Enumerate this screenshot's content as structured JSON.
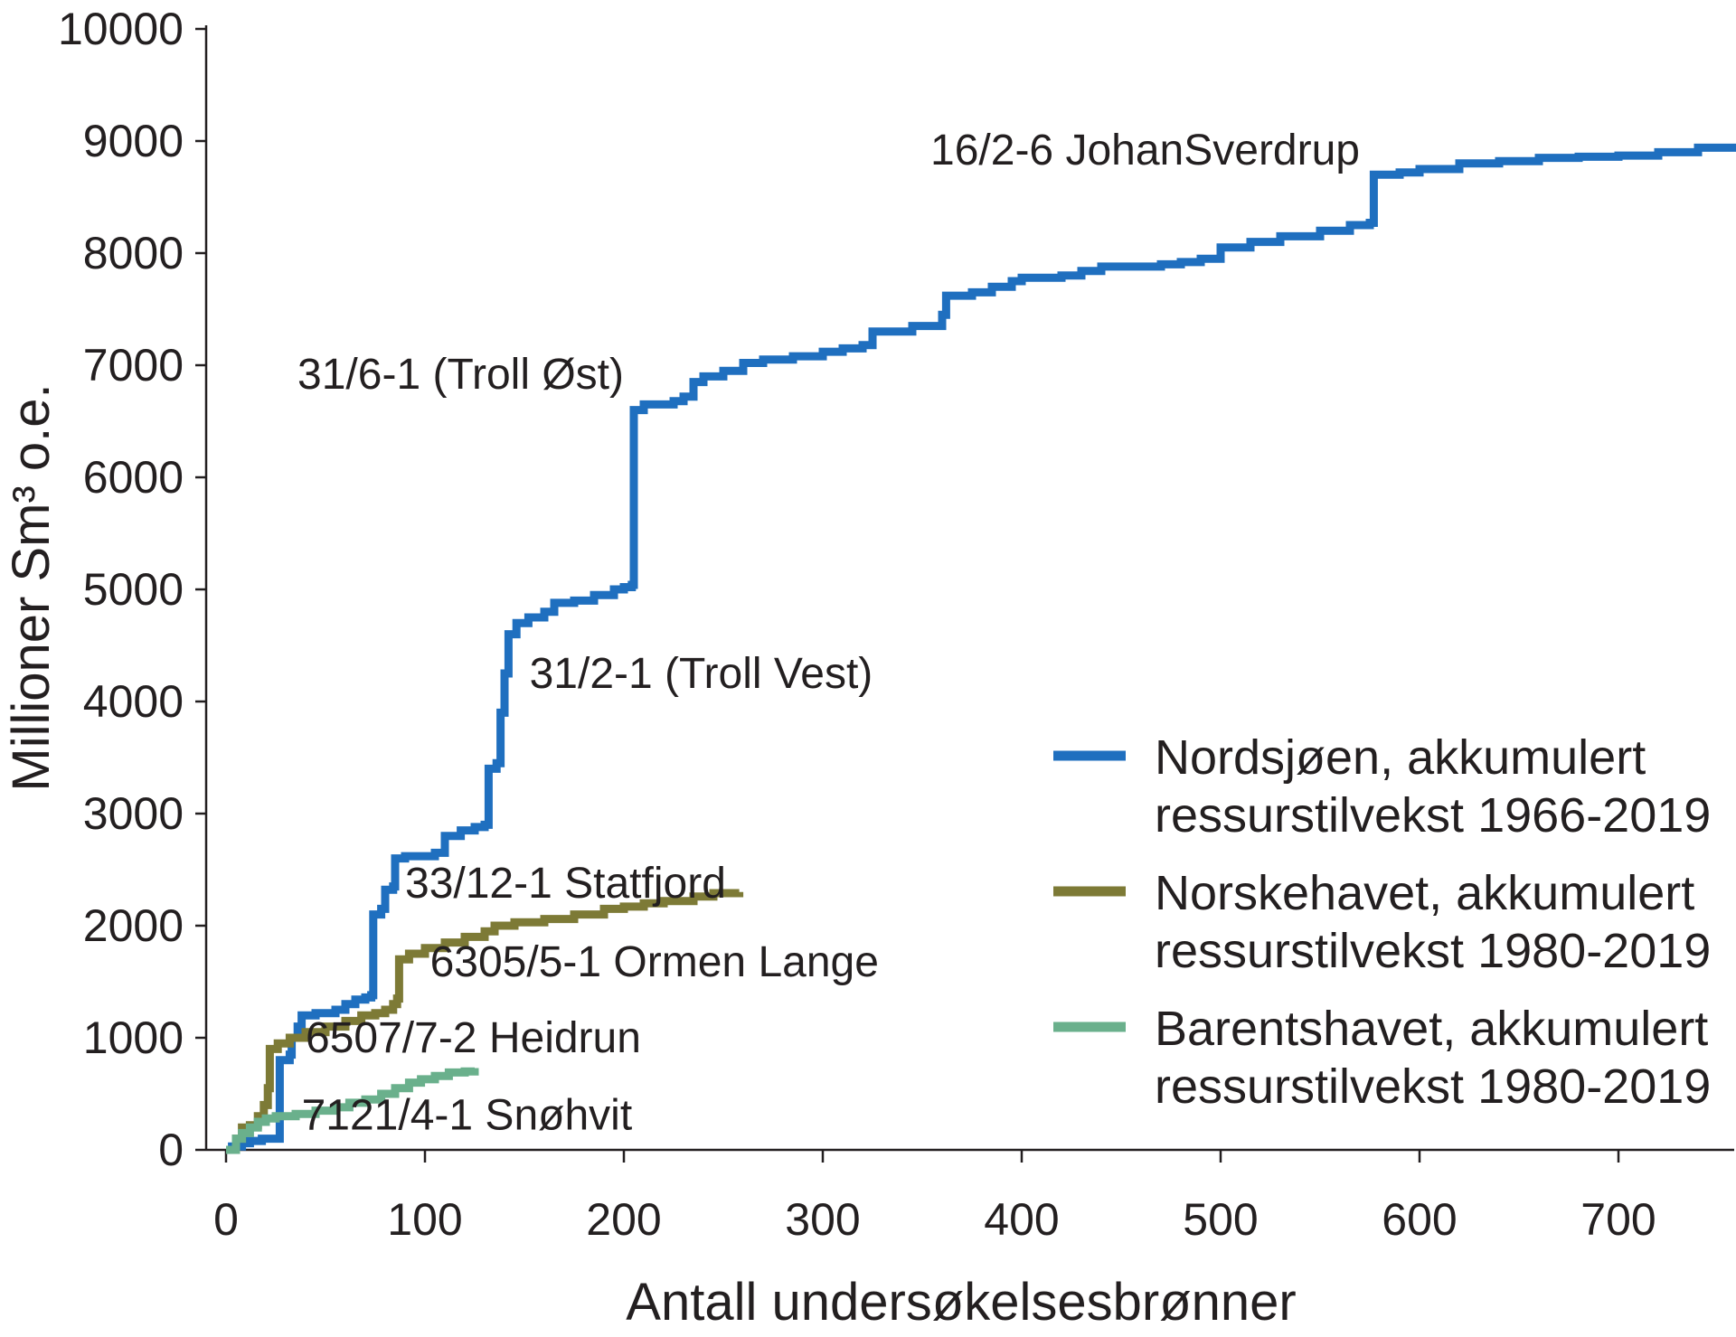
{
  "chart_data": {
    "type": "line",
    "title": "",
    "xlabel": "Antall undersøkelsesbrønner",
    "ylabel": "Millioner Sm³ o.e.",
    "xlim": [
      0,
      760
    ],
    "ylim": [
      0,
      10000
    ],
    "xticks": [
      0,
      100,
      200,
      300,
      400,
      500,
      600,
      700
    ],
    "yticks": [
      0,
      1000,
      2000,
      3000,
      4000,
      5000,
      6000,
      7000,
      8000,
      9000,
      10000
    ],
    "grid": false,
    "legend_position": "right",
    "series": [
      {
        "name": "Nordsjøen, akkumulert ressurstilvekst 1966-2019",
        "legend_lines": [
          "Nordsjøen, akkumulert",
          "ressurstilvekst 1966-2019"
        ],
        "color": "#1f6fbf",
        "points": [
          [
            0,
            0
          ],
          [
            3,
            30
          ],
          [
            8,
            60
          ],
          [
            12,
            80
          ],
          [
            18,
            100
          ],
          [
            22,
            100
          ],
          [
            26,
            100
          ],
          [
            27,
            800
          ],
          [
            32,
            850
          ],
          [
            33,
            1000
          ],
          [
            36,
            1100
          ],
          [
            38,
            1200
          ],
          [
            45,
            1220
          ],
          [
            55,
            1250
          ],
          [
            60,
            1300
          ],
          [
            65,
            1340
          ],
          [
            70,
            1360
          ],
          [
            73,
            1380
          ],
          [
            74,
            2100
          ],
          [
            78,
            2150
          ],
          [
            80,
            2320
          ],
          [
            84,
            2350
          ],
          [
            85,
            2600
          ],
          [
            90,
            2620
          ],
          [
            105,
            2650
          ],
          [
            110,
            2800
          ],
          [
            118,
            2850
          ],
          [
            125,
            2880
          ],
          [
            130,
            2900
          ],
          [
            132,
            3400
          ],
          [
            136,
            3450
          ],
          [
            138,
            3900
          ],
          [
            140,
            4250
          ],
          [
            142,
            4600
          ],
          [
            146,
            4700
          ],
          [
            152,
            4750
          ],
          [
            160,
            4800
          ],
          [
            165,
            4880
          ],
          [
            175,
            4900
          ],
          [
            185,
            4950
          ],
          [
            195,
            5000
          ],
          [
            200,
            5020
          ],
          [
            204,
            5040
          ],
          [
            205,
            6600
          ],
          [
            210,
            6650
          ],
          [
            225,
            6680
          ],
          [
            230,
            6720
          ],
          [
            235,
            6850
          ],
          [
            240,
            6900
          ],
          [
            250,
            6950
          ],
          [
            260,
            7020
          ],
          [
            270,
            7050
          ],
          [
            285,
            7080
          ],
          [
            300,
            7120
          ],
          [
            310,
            7150
          ],
          [
            320,
            7180
          ],
          [
            325,
            7300
          ],
          [
            345,
            7350
          ],
          [
            360,
            7450
          ],
          [
            362,
            7620
          ],
          [
            375,
            7650
          ],
          [
            385,
            7700
          ],
          [
            395,
            7750
          ],
          [
            400,
            7780
          ],
          [
            420,
            7800
          ],
          [
            430,
            7840
          ],
          [
            440,
            7880
          ],
          [
            470,
            7900
          ],
          [
            480,
            7920
          ],
          [
            490,
            7950
          ],
          [
            500,
            8050
          ],
          [
            515,
            8100
          ],
          [
            530,
            8150
          ],
          [
            550,
            8200
          ],
          [
            565,
            8250
          ],
          [
            575,
            8270
          ],
          [
            577,
            8700
          ],
          [
            590,
            8720
          ],
          [
            600,
            8750
          ],
          [
            620,
            8800
          ],
          [
            640,
            8820
          ],
          [
            660,
            8850
          ],
          [
            680,
            8860
          ],
          [
            700,
            8870
          ],
          [
            720,
            8900
          ],
          [
            740,
            8940
          ],
          [
            760,
            8970
          ]
        ]
      },
      {
        "name": "Norskehavet, akkumulert ressurstilvekst 1980-2019",
        "legend_lines": [
          "Norskehavet, akkumulert",
          "ressurstilvekst 1980-2019"
        ],
        "color": "#7d7a36",
        "points": [
          [
            0,
            0
          ],
          [
            5,
            100
          ],
          [
            8,
            200
          ],
          [
            12,
            220
          ],
          [
            16,
            300
          ],
          [
            19,
            400
          ],
          [
            21,
            550
          ],
          [
            22,
            900
          ],
          [
            26,
            950
          ],
          [
            32,
            1000
          ],
          [
            40,
            1050
          ],
          [
            50,
            1100
          ],
          [
            60,
            1150
          ],
          [
            68,
            1200
          ],
          [
            75,
            1220
          ],
          [
            80,
            1250
          ],
          [
            84,
            1300
          ],
          [
            86,
            1350
          ],
          [
            87,
            1700
          ],
          [
            92,
            1750
          ],
          [
            100,
            1800
          ],
          [
            110,
            1850
          ],
          [
            120,
            1900
          ],
          [
            130,
            1950
          ],
          [
            135,
            2000
          ],
          [
            145,
            2030
          ],
          [
            160,
            2060
          ],
          [
            175,
            2100
          ],
          [
            190,
            2150
          ],
          [
            200,
            2170
          ],
          [
            210,
            2200
          ],
          [
            220,
            2220
          ],
          [
            235,
            2260
          ],
          [
            245,
            2290
          ],
          [
            258,
            2300
          ]
        ]
      },
      {
        "name": "Barentshavet, akkumulert ressurstilvekst 1980-2019",
        "legend_lines": [
          "Barentshavet, akkumulert",
          "ressurstilvekst 1980-2019"
        ],
        "color": "#6ab08c",
        "points": [
          [
            0,
            0
          ],
          [
            5,
            100
          ],
          [
            8,
            150
          ],
          [
            12,
            200
          ],
          [
            16,
            250
          ],
          [
            20,
            280
          ],
          [
            25,
            300
          ],
          [
            35,
            320
          ],
          [
            45,
            350
          ],
          [
            55,
            380
          ],
          [
            62,
            420
          ],
          [
            70,
            450
          ],
          [
            78,
            500
          ],
          [
            85,
            550
          ],
          [
            92,
            600
          ],
          [
            98,
            630
          ],
          [
            105,
            660
          ],
          [
            112,
            690
          ],
          [
            120,
            700
          ],
          [
            125,
            730
          ]
        ]
      }
    ],
    "annotations": [
      {
        "text": "16/2-6 JohanSverdrup",
        "x": 570,
        "y": 8550
      },
      {
        "text": "31/6-1 (Troll Øst)",
        "x": 200,
        "y": 6550
      },
      {
        "text": "31/2-1 (Troll Vest)",
        "x": 148,
        "y": 4200
      },
      {
        "text": "33/12-1 Statfjord",
        "x": 90,
        "y": 2250
      },
      {
        "text": "6305/5-1 Ormen Lange",
        "x": 98,
        "y": 1550
      },
      {
        "text": "6507/7-2 Heidrun",
        "x": 40,
        "y": 870
      },
      {
        "text": "7121/4-1 Snøhvit",
        "x": 38,
        "y": 180
      }
    ]
  }
}
